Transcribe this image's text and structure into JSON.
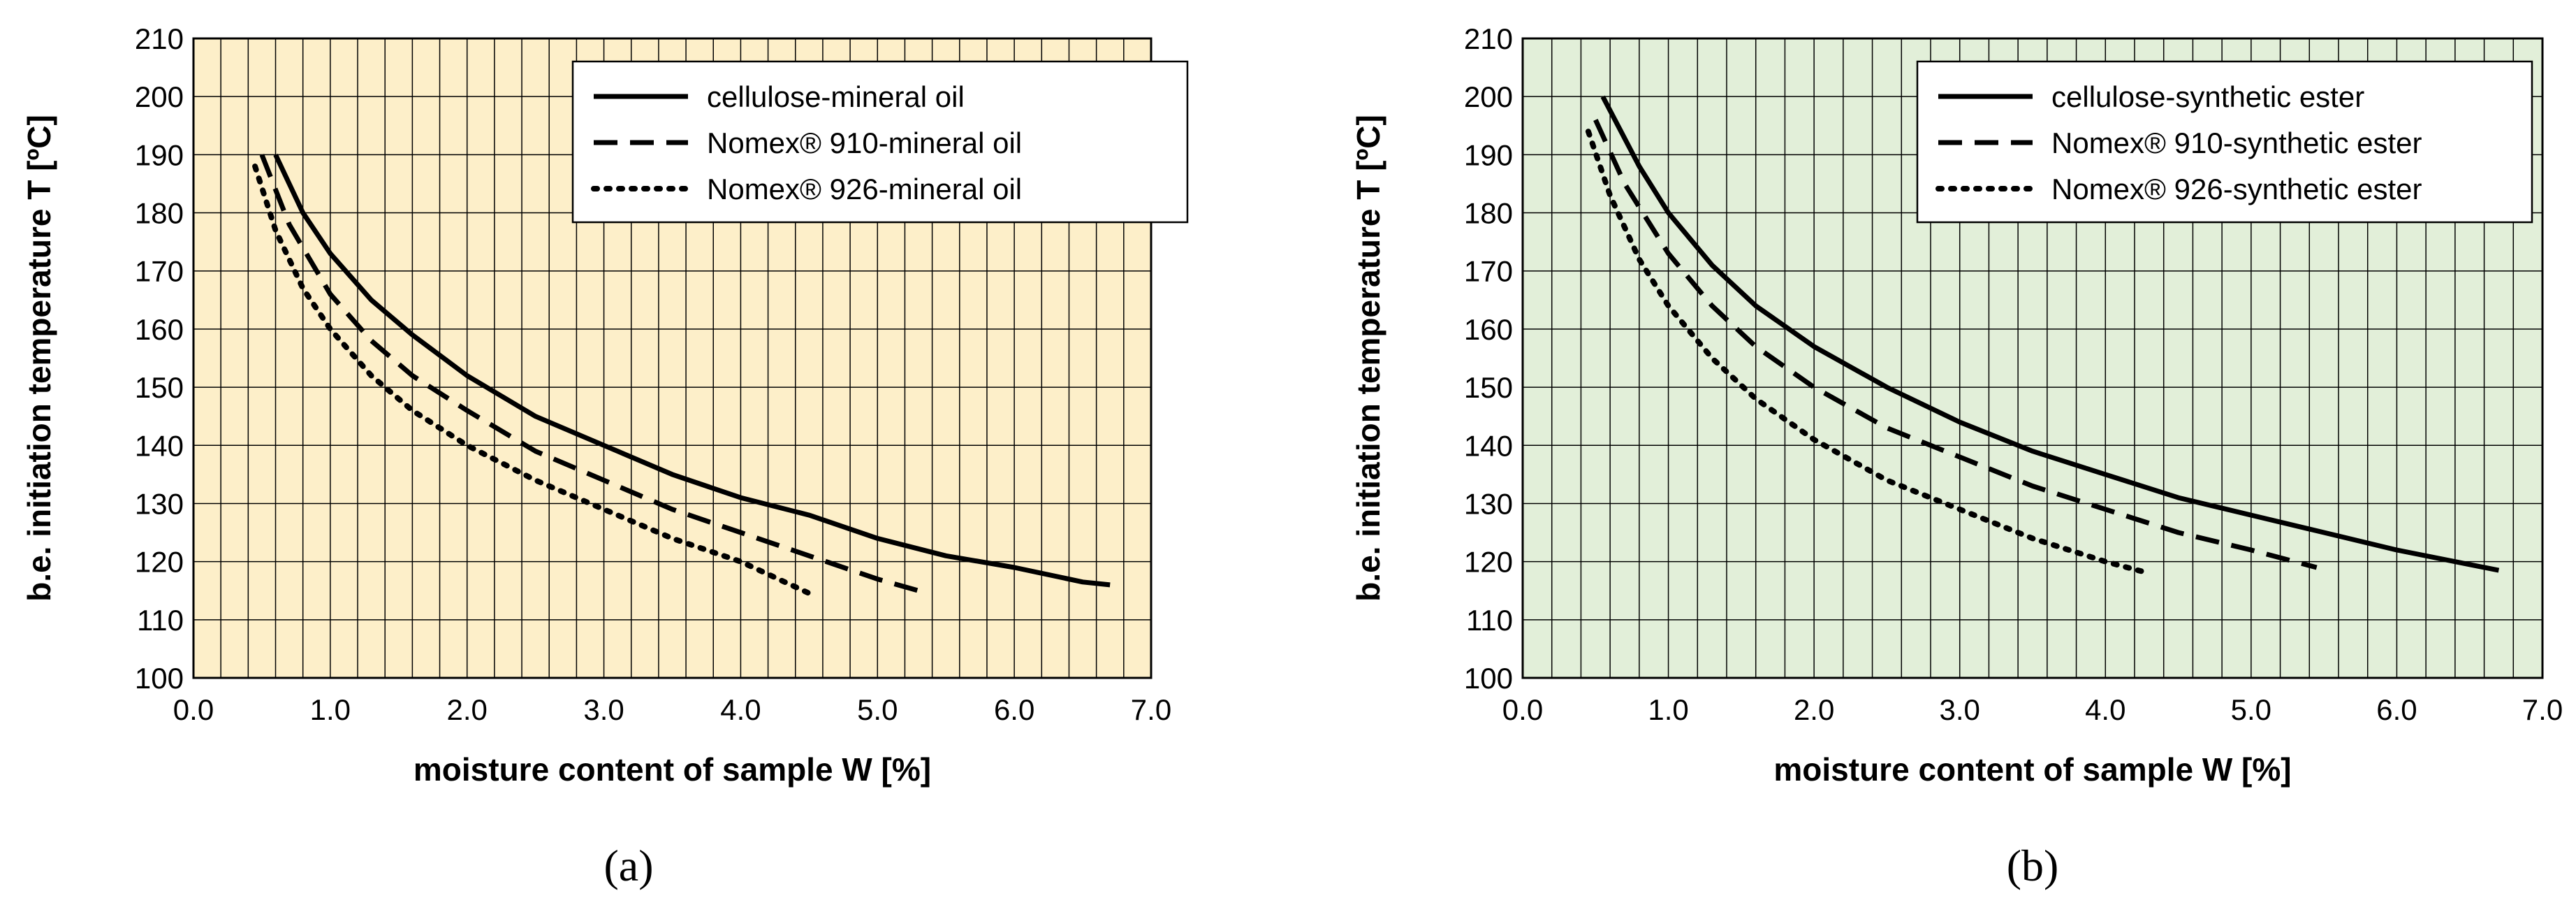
{
  "chart_data": [
    {
      "type": "line",
      "panel_label": "(a)",
      "xlabel": "moisture content of sample W [%]",
      "ylabel": "b.e. initiation temperature T [ºC]",
      "xlim": [
        0.0,
        7.0
      ],
      "ylim": [
        100,
        210
      ],
      "xticks": [
        "0.0",
        "1.0",
        "2.0",
        "3.0",
        "4.0",
        "5.0",
        "6.0",
        "7.0"
      ],
      "yticks": [
        "100",
        "110",
        "120",
        "130",
        "140",
        "150",
        "160",
        "170",
        "180",
        "190",
        "200",
        "210"
      ],
      "background": "#fdefc9",
      "grid": true,
      "legend_position": "top-right",
      "series": [
        {
          "name": "cellulose-mineral  oil",
          "style": "solid",
          "x": [
            0.6,
            0.8,
            1.0,
            1.3,
            1.6,
            2.0,
            2.5,
            3.0,
            3.5,
            4.0,
            4.5,
            5.0,
            5.5,
            6.0,
            6.5,
            6.7
          ],
          "y": [
            190,
            180,
            173,
            165,
            159,
            152,
            145,
            140,
            135,
            131,
            128,
            124,
            121,
            119,
            116.5,
            116
          ]
        },
        {
          "name": "Nomex® 910-mineral oil",
          "style": "dashed",
          "x": [
            0.5,
            0.7,
            1.0,
            1.3,
            1.6,
            2.0,
            2.5,
            3.0,
            3.5,
            4.0,
            4.5,
            5.0,
            5.3
          ],
          "y": [
            190,
            178,
            166,
            158,
            152,
            146,
            139,
            134,
            129,
            125,
            121,
            117,
            115
          ]
        },
        {
          "name": "Nomex® 926-mineral oil",
          "style": "dotted",
          "x": [
            0.45,
            0.6,
            0.8,
            1.0,
            1.3,
            1.6,
            2.0,
            2.5,
            3.0,
            3.5,
            4.0,
            4.55
          ],
          "y": [
            188,
            177,
            167,
            160,
            152,
            146,
            140,
            134,
            129,
            124,
            120,
            114
          ]
        }
      ]
    },
    {
      "type": "line",
      "panel_label": "(b)",
      "xlabel": "moisture content of sample W [%]",
      "ylabel": "b.e. initiation temperature T [ºC]",
      "xlim": [
        0.0,
        7.0
      ],
      "ylim": [
        100,
        210
      ],
      "xticks": [
        "0.0",
        "1.0",
        "2.0",
        "3.0",
        "4.0",
        "5.0",
        "6.0",
        "7.0"
      ],
      "yticks": [
        "100",
        "110",
        "120",
        "130",
        "140",
        "150",
        "160",
        "170",
        "180",
        "190",
        "200",
        "210"
      ],
      "background": "#e2efd9",
      "grid": true,
      "legend_position": "top-right",
      "series": [
        {
          "name": "cellulose-synthetic  ester",
          "style": "solid",
          "x": [
            0.55,
            0.8,
            1.0,
            1.3,
            1.6,
            2.0,
            2.5,
            3.0,
            3.5,
            4.0,
            4.5,
            5.0,
            5.5,
            6.0,
            6.5,
            6.7
          ],
          "y": [
            200,
            188,
            180,
            171,
            164,
            157,
            150,
            144,
            139,
            135,
            131,
            128,
            125,
            122,
            119.5,
            118.5
          ]
        },
        {
          "name": "Nomex® 910-synthetic ester",
          "style": "dashed",
          "x": [
            0.5,
            0.7,
            1.0,
            1.3,
            1.6,
            2.0,
            2.5,
            3.0,
            3.5,
            4.0,
            4.5,
            5.0,
            5.45
          ],
          "y": [
            196,
            185,
            173,
            164,
            157,
            150,
            143,
            138,
            133,
            129,
            125,
            122,
            119
          ]
        },
        {
          "name": "Nomex® 926-synthetic ester",
          "style": "dotted",
          "x": [
            0.45,
            0.6,
            0.8,
            1.0,
            1.3,
            1.6,
            2.0,
            2.5,
            3.0,
            3.5,
            4.0,
            4.3
          ],
          "y": [
            194,
            183,
            172,
            164,
            155,
            148,
            141,
            134,
            129,
            124,
            120,
            118
          ]
        }
      ]
    }
  ]
}
